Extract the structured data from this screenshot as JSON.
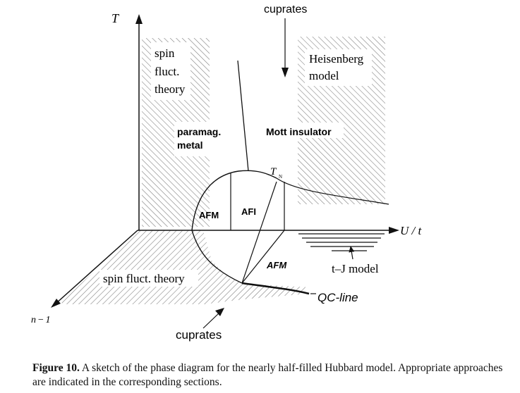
{
  "axes": {
    "t_label": "T",
    "u_label": "U / t",
    "n_label": "n−1"
  },
  "regions": {
    "spin_fluct_line1": "spin",
    "spin_fluct_line2": "fluct.",
    "spin_fluct_line3": "theory",
    "heisenberg_line1": "Heisenberg",
    "heisenberg_line2": "model",
    "paramag_line1": "paramag.",
    "paramag_line2": "metal",
    "mott_insulator": "Mott insulator",
    "afm_left": "AFM",
    "afi": "AFI",
    "afm_bottom": "AFM",
    "spin_fluct_floor": "spin fluct. theory",
    "tj_model": "t–J model",
    "qc_line": "QC-line",
    "tn_main": "T",
    "tn_sub": "N"
  },
  "annotations": {
    "cuprates_top": "cuprates",
    "cuprates_bottom": "cuprates"
  },
  "caption": {
    "label": "Figure 10.",
    "text": "A sketch of the phase diagram for the nearly half-filled Hubbard model. Appropriate approaches are indicated in the corresponding sections."
  },
  "colors": {
    "ink": "#111111",
    "hatch": "#8a8a8a"
  }
}
